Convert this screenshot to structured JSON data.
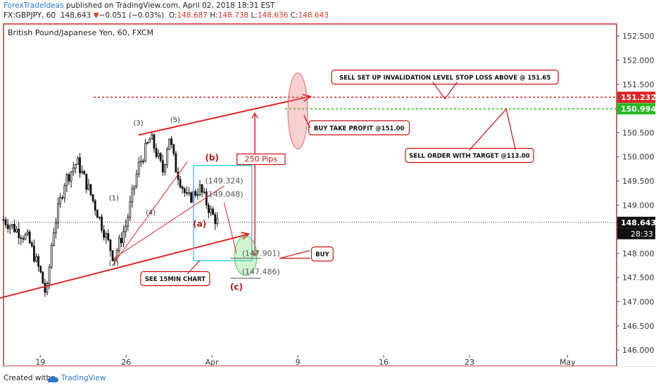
{
  "header": {
    "author": "ForexTradeIdeas",
    "published_text": "published on TradingView.com, April 02, 2018 18:31 EST",
    "symbol": "FX:GBPJPY, 60",
    "last": "148.643",
    "change": "−0.051 (−0.03%)",
    "o_label": "O:",
    "o": "148.687",
    "h_label": "H:",
    "h": "148.738",
    "l_label": "L:",
    "l": "148.636",
    "c_label": "C:",
    "c": "148.643"
  },
  "footer": {
    "created_with": "Created with",
    "brand": "TradingView"
  },
  "colors": {
    "red": "#e02424",
    "green": "#22bb22",
    "cyan": "#33d4ec",
    "candle": "#111111",
    "label_border": "#cc1111"
  },
  "chart_data": {
    "type": "candlestick",
    "title": "British Pound/Japanese Yen, 60, FXCM",
    "y_range": [
      145.9,
      152.75
    ],
    "y_ticks": [
      146.0,
      146.5,
      147.0,
      147.5,
      148.0,
      148.5,
      149.0,
      149.5,
      150.0,
      150.5,
      151.0,
      151.5,
      152.0,
      152.5
    ],
    "y_tick_labels": [
      "146.000",
      "146.500",
      "147.000",
      "147.500",
      "148.000",
      "148.500",
      "149.000",
      "149.500",
      "150.000",
      "150.500",
      "151.000",
      "151.500",
      "152.000",
      "152.500"
    ],
    "x_range": [
      "2018-03-16",
      "2018-05-05"
    ],
    "x_ticks": [
      {
        "label": "19",
        "date": "2018-03-19"
      },
      {
        "label": "26",
        "date": "2018-03-26"
      },
      {
        "label": "Apr",
        "date": "2018-04-02"
      },
      {
        "label": "9",
        "date": "2018-04-09"
      },
      {
        "label": "16",
        "date": "2018-04-16"
      },
      {
        "label": "23",
        "date": "2018-04-23"
      },
      {
        "label": "May",
        "date": "2018-05-01"
      }
    ],
    "last_price": "148.643",
    "countdown": "28:33",
    "price_tags": [
      {
        "value": 151.232,
        "label": "151.232",
        "color": "#e02424",
        "line_style": "dashed"
      },
      {
        "value": 150.994,
        "label": "150.994",
        "color": "#22bb22",
        "line_style": "dashed"
      }
    ],
    "price_path": [
      {
        "x": "2018-03-16",
        "y": 148.7
      },
      {
        "x": "2018-03-18",
        "y": 148.3
      },
      {
        "x": "2018-03-19",
        "y": 147.6
      },
      {
        "x": "2018-03-19T12:00",
        "y": 147.1
      },
      {
        "x": "2018-03-20",
        "y": 148.4
      },
      {
        "x": "2018-03-21",
        "y": 149.5
      },
      {
        "x": "2018-03-22",
        "y": 149.9
      },
      {
        "x": "2018-03-23",
        "y": 149.3
      },
      {
        "x": "2018-03-24",
        "y": 148.6
      },
      {
        "x": "2018-03-25",
        "y": 147.9
      },
      {
        "x": "2018-03-26",
        "y": 148.6
      },
      {
        "x": "2018-03-27",
        "y": 149.8
      },
      {
        "x": "2018-03-28",
        "y": 150.4
      },
      {
        "x": "2018-03-29",
        "y": 149.7
      },
      {
        "x": "2018-03-29T12:00",
        "y": 150.45
      },
      {
        "x": "2018-03-30",
        "y": 149.8
      },
      {
        "x": "2018-03-31",
        "y": 149.1
      },
      {
        "x": "2018-04-01",
        "y": 149.35
      },
      {
        "x": "2018-04-02",
        "y": 148.8
      },
      {
        "x": "2018-04-02T12:00",
        "y": 148.64
      }
    ],
    "trendlines": [
      {
        "from": {
          "x": "2018-03-13",
          "y": 146.9
        },
        "to": {
          "x": "2018-04-05",
          "y": 148.4
        },
        "color": "#e02424",
        "width": 2
      },
      {
        "from": {
          "x": "2018-03-27",
          "y": 150.45
        },
        "to": {
          "x": "2018-04-10",
          "y": 151.25
        },
        "color": "#e02424",
        "width": 2
      },
      {
        "from": {
          "x": "2018-03-25",
          "y": 147.8
        },
        "to": {
          "x": "2018-03-31",
          "y": 149.9
        },
        "color": "#e02424",
        "width": 1
      },
      {
        "from": {
          "x": "2018-03-25",
          "y": 147.9
        },
        "to": {
          "x": "2018-04-03",
          "y": 149.4
        },
        "color": "#e02424",
        "width": 1
      }
    ],
    "wave_labels": [
      {
        "text": "(1)",
        "x": "2018-03-25",
        "y": 149.1,
        "color": "#333333"
      },
      {
        "text": "(2)",
        "x": "2018-03-25",
        "y": 147.75,
        "color": "#333333"
      },
      {
        "text": "(3)",
        "x": "2018-03-27",
        "y": 150.65,
        "color": "#333333"
      },
      {
        "text": "(4)",
        "x": "2018-03-28",
        "y": 148.8,
        "color": "#333333"
      },
      {
        "text": "(5)",
        "x": "2018-03-30",
        "y": 150.72,
        "color": "#333333"
      },
      {
        "text": "(a)",
        "x": "2018-04-01",
        "y": 148.55,
        "color": "#b01818"
      },
      {
        "text": "(b)",
        "x": "2018-04-02",
        "y": 149.92,
        "color": "#b01818"
      },
      {
        "text": "(c)",
        "x": "2018-04-04",
        "y": 147.25,
        "color": "#b01818"
      }
    ],
    "level_labels": [
      {
        "text": "(149.324)",
        "x": "2018-04-03",
        "y": 149.45
      },
      {
        "text": "(149.048)",
        "x": "2018-04-03",
        "y": 149.17
      },
      {
        "text": "(147.901)",
        "x": "2018-04-06",
        "y": 147.95
      },
      {
        "text": "(147.486)",
        "x": "2018-04-06",
        "y": 147.57
      }
    ],
    "callouts": [
      {
        "text": "SELL SET UP INVALIDATION LEVEL STOP LOSS ABOVE @ 151.65",
        "x": "2018-04-21",
        "y": 151.65
      },
      {
        "text": "BUY TAKE PROFIT @151.00",
        "x": "2018-04-14",
        "y": 150.6
      },
      {
        "text": "SELL ORDER WITH TARGET @113.00",
        "x": "2018-04-23",
        "y": 150.03
      },
      {
        "text": "BUY",
        "x": "2018-04-11",
        "y": 147.99
      },
      {
        "text": "SEE 15MIN CHART",
        "x": "2018-03-30",
        "y": 147.48
      },
      {
        "text": "250 Pips",
        "x": "2018-04-06",
        "y": 149.95
      }
    ]
  }
}
